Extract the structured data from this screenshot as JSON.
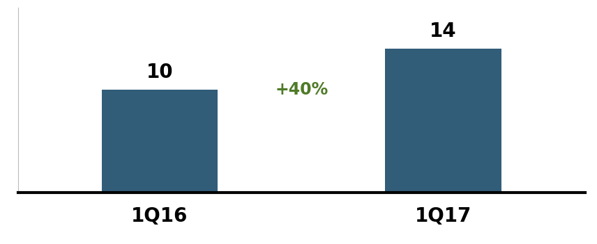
{
  "chart_data": {
    "type": "bar",
    "categories": [
      "1Q16",
      "1Q17"
    ],
    "values": [
      10,
      14
    ],
    "color": "#325d79",
    "ylim": [
      0,
      18
    ],
    "data_labels": true,
    "tick_labels": "x",
    "annotations": [
      "+40%"
    ]
  }
}
